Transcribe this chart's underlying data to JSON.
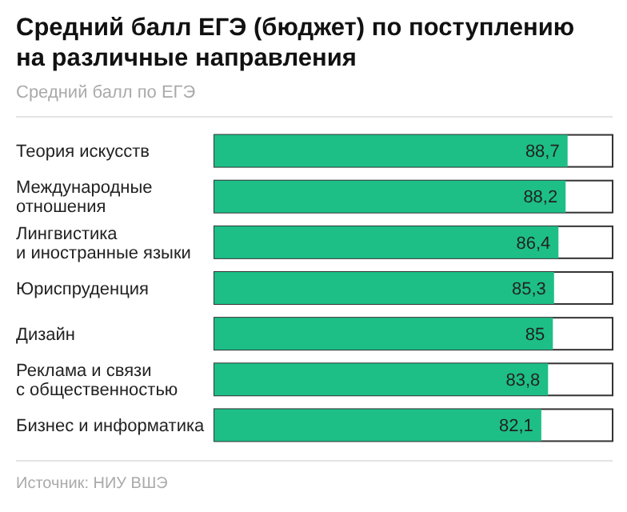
{
  "chart_data": {
    "type": "bar",
    "orientation": "horizontal",
    "title": "Средний балл ЕГЭ (бюджет) по поступлению на различные направления",
    "subtitle": "Средний балл по ЕГЭ",
    "categories": [
      "Теория искусств",
      "Международные отношения",
      "Лингвистика и иностранные языки",
      "Юриспруденция",
      "Дизайн",
      "Реклама и связи с общественностью",
      "Бизнес и информатика"
    ],
    "values": [
      88.7,
      88.2,
      86.4,
      85.3,
      85,
      83.8,
      82.1
    ],
    "value_labels": [
      "88,7",
      "88,2",
      "86,4",
      "85,3",
      "85",
      "83,8",
      "82,1"
    ],
    "color": "#1dbf87",
    "xlim": [
      0,
      100
    ],
    "tick_labels": "y",
    "annotations": [
      "Источник: НИУ ВШЭ"
    ]
  }
}
